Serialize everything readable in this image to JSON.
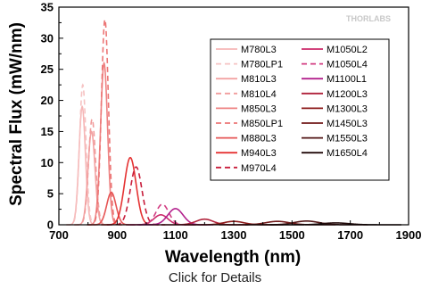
{
  "chart_data": {
    "type": "line",
    "title": "",
    "xlabel": "Wavelength (nm)",
    "ylabel": "Spectral Flux (mW/nm)",
    "xlim": [
      700,
      1900
    ],
    "ylim": [
      0,
      35
    ],
    "xticks": [
      700,
      900,
      1100,
      1300,
      1500,
      1700,
      1900
    ],
    "yticks": [
      0,
      5,
      10,
      15,
      20,
      25,
      30,
      35
    ],
    "grid": false,
    "legend_position": "right",
    "legend_columns": 2,
    "watermark": "THORLABS",
    "series": [
      {
        "name": "M780L3",
        "color": "#f6b6b6",
        "dash": false,
        "center": 780,
        "width": 11,
        "peak": 19
      },
      {
        "name": "M780LP1",
        "color": "#f6c3c3",
        "dash": true,
        "center": 782,
        "width": 11,
        "peak": 22.5
      },
      {
        "name": "M810L3",
        "color": "#f3a3a3",
        "dash": false,
        "center": 812,
        "width": 12,
        "peak": 15
      },
      {
        "name": "M810L4",
        "color": "#f19c9c",
        "dash": true,
        "center": 814,
        "width": 12,
        "peak": 17
      },
      {
        "name": "M850L3",
        "color": "#ee8383",
        "dash": false,
        "center": 855,
        "width": 12,
        "peak": 26
      },
      {
        "name": "M850LP1",
        "color": "#ec7676",
        "dash": true,
        "center": 858,
        "width": 12,
        "peak": 33
      },
      {
        "name": "M880L3",
        "color": "#e65555",
        "dash": false,
        "center": 880,
        "width": 16,
        "peak": 5.2
      },
      {
        "name": "M940L3",
        "color": "#e53333",
        "dash": false,
        "center": 945,
        "width": 20,
        "peak": 10.8
      },
      {
        "name": "M970L4",
        "color": "#c81e3c",
        "dash": true,
        "center": 965,
        "width": 20,
        "peak": 9.3
      },
      {
        "name": "M1050L2",
        "color": "#cc2a6a",
        "dash": false,
        "center": 1050,
        "width": 24,
        "peak": 1.6
      },
      {
        "name": "M1050L4",
        "color": "#d23c82",
        "dash": true,
        "center": 1055,
        "width": 22,
        "peak": 3.3
      },
      {
        "name": "M1100L1",
        "color": "#b3218d",
        "dash": false,
        "center": 1100,
        "width": 26,
        "peak": 2.6
      },
      {
        "name": "M1200L3",
        "color": "#b0213a",
        "dash": false,
        "center": 1200,
        "width": 30,
        "peak": 0.9
      },
      {
        "name": "M1300L3",
        "color": "#8c1a1a",
        "dash": false,
        "center": 1300,
        "width": 34,
        "peak": 0.55
      },
      {
        "name": "M1450L3",
        "color": "#701818",
        "dash": false,
        "center": 1450,
        "width": 40,
        "peak": 0.55
      },
      {
        "name": "M1550L3",
        "color": "#501414",
        "dash": false,
        "center": 1550,
        "width": 42,
        "peak": 0.6
      },
      {
        "name": "M1650L4",
        "color": "#220a0a",
        "dash": false,
        "center": 1650,
        "width": 45,
        "peak": 0.3
      }
    ]
  },
  "caption": "Click for Details"
}
